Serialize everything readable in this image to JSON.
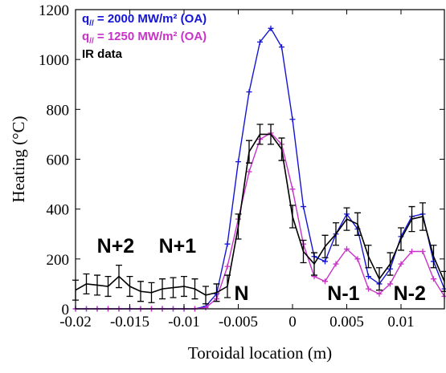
{
  "chart_data": {
    "type": "line",
    "xlabel": "Toroidal location (m)",
    "ylabel": "Heating (°C)",
    "xlim": [
      -0.02,
      0.014
    ],
    "ylim": [
      0,
      1200
    ],
    "xticks": [
      -0.02,
      -0.015,
      -0.01,
      -0.005,
      0,
      0.005,
      0.01
    ],
    "xtick_labels": [
      "-0.02",
      "-0.015",
      "-0.01",
      "-0.005",
      "0",
      "0.005",
      "0.01"
    ],
    "yticks": [
      0,
      200,
      400,
      600,
      800,
      1000,
      1200
    ],
    "ytick_labels": [
      "0",
      "200",
      "400",
      "600",
      "800",
      "1000",
      "1200"
    ],
    "legend_position": "top-left",
    "legend": [
      {
        "prefix": "q",
        "subscript": "//",
        "text": " = 2000 MW/m² (OA)",
        "color": "#1414d6"
      },
      {
        "prefix": "q",
        "subscript": "//",
        "text": " = 1250 MW/m² (OA)",
        "color": "#c832c8"
      },
      {
        "prefix": "",
        "subscript": "",
        "text": "IR data",
        "color": "#000000"
      }
    ],
    "annotations": [
      {
        "text": "N+2",
        "x": -0.0163,
        "y": 225
      },
      {
        "text": "N+1",
        "x": -0.0106,
        "y": 225
      },
      {
        "text": "N",
        "x": -0.0047,
        "y": 35
      },
      {
        "text": "N-1",
        "x": 0.0047,
        "y": 35
      },
      {
        "text": "N-2",
        "x": 0.0108,
        "y": 35
      }
    ],
    "series": [
      {
        "key": "blue",
        "color": "#1414d6",
        "marker": "plus",
        "x": [
          -0.02,
          -0.019,
          -0.018,
          -0.017,
          -0.016,
          -0.015,
          -0.014,
          -0.013,
          -0.012,
          -0.011,
          -0.01,
          -0.009,
          -0.008,
          -0.007,
          -0.006,
          -0.005,
          -0.004,
          -0.003,
          -0.002,
          -0.001,
          0,
          0.001,
          0.002,
          0.003,
          0.004,
          0.005,
          0.006,
          0.007,
          0.008,
          0.009,
          0.01,
          0.011,
          0.012,
          0.013,
          0.014
        ],
        "y": [
          0,
          0,
          0,
          0,
          0,
          0,
          0,
          0,
          0,
          0,
          0,
          0,
          10,
          60,
          260,
          590,
          870,
          1070,
          1125,
          1050,
          760,
          410,
          210,
          190,
          300,
          380,
          320,
          130,
          100,
          160,
          290,
          370,
          380,
          190,
          80
        ]
      },
      {
        "key": "magenta",
        "color": "#c832c8",
        "marker": "plus",
        "x": [
          -0.02,
          -0.019,
          -0.018,
          -0.017,
          -0.016,
          -0.015,
          -0.014,
          -0.013,
          -0.012,
          -0.011,
          -0.01,
          -0.009,
          -0.008,
          -0.007,
          -0.006,
          -0.005,
          -0.004,
          -0.003,
          -0.002,
          -0.001,
          0,
          0.001,
          0.002,
          0.003,
          0.004,
          0.005,
          0.006,
          0.007,
          0.008,
          0.009,
          0.01,
          0.011,
          0.012,
          0.013,
          0.014
        ],
        "y": [
          0,
          0,
          0,
          0,
          0,
          0,
          0,
          0,
          0,
          0,
          0,
          0,
          5,
          40,
          170,
          360,
          550,
          680,
          705,
          660,
          480,
          260,
          130,
          110,
          180,
          240,
          200,
          80,
          60,
          100,
          180,
          230,
          230,
          120,
          50
        ]
      },
      {
        "key": "ir",
        "color": "#000000",
        "marker": "errorbar",
        "x": [
          -0.02,
          -0.019,
          -0.018,
          -0.017,
          -0.016,
          -0.015,
          -0.014,
          -0.013,
          -0.012,
          -0.011,
          -0.01,
          -0.009,
          -0.008,
          -0.007,
          -0.006,
          -0.005,
          -0.004,
          -0.003,
          -0.002,
          -0.001,
          0,
          0.001,
          0.002,
          0.003,
          0.004,
          0.005,
          0.006,
          0.007,
          0.008,
          0.009,
          0.01,
          0.011,
          0.012,
          0.013,
          0.014
        ],
        "y": [
          75,
          100,
          95,
          90,
          130,
          90,
          70,
          65,
          80,
          85,
          90,
          80,
          55,
          65,
          90,
          330,
          630,
          700,
          700,
          640,
          370,
          230,
          180,
          250,
          300,
          360,
          340,
          210,
          120,
          180,
          280,
          360,
          370,
          210,
          110
        ],
        "err": [
          40,
          40,
          40,
          40,
          45,
          40,
          40,
          40,
          40,
          40,
          40,
          40,
          35,
          35,
          45,
          50,
          45,
          40,
          40,
          45,
          45,
          45,
          45,
          45,
          45,
          45,
          45,
          45,
          45,
          45,
          45,
          50,
          55,
          45,
          40
        ]
      }
    ]
  }
}
